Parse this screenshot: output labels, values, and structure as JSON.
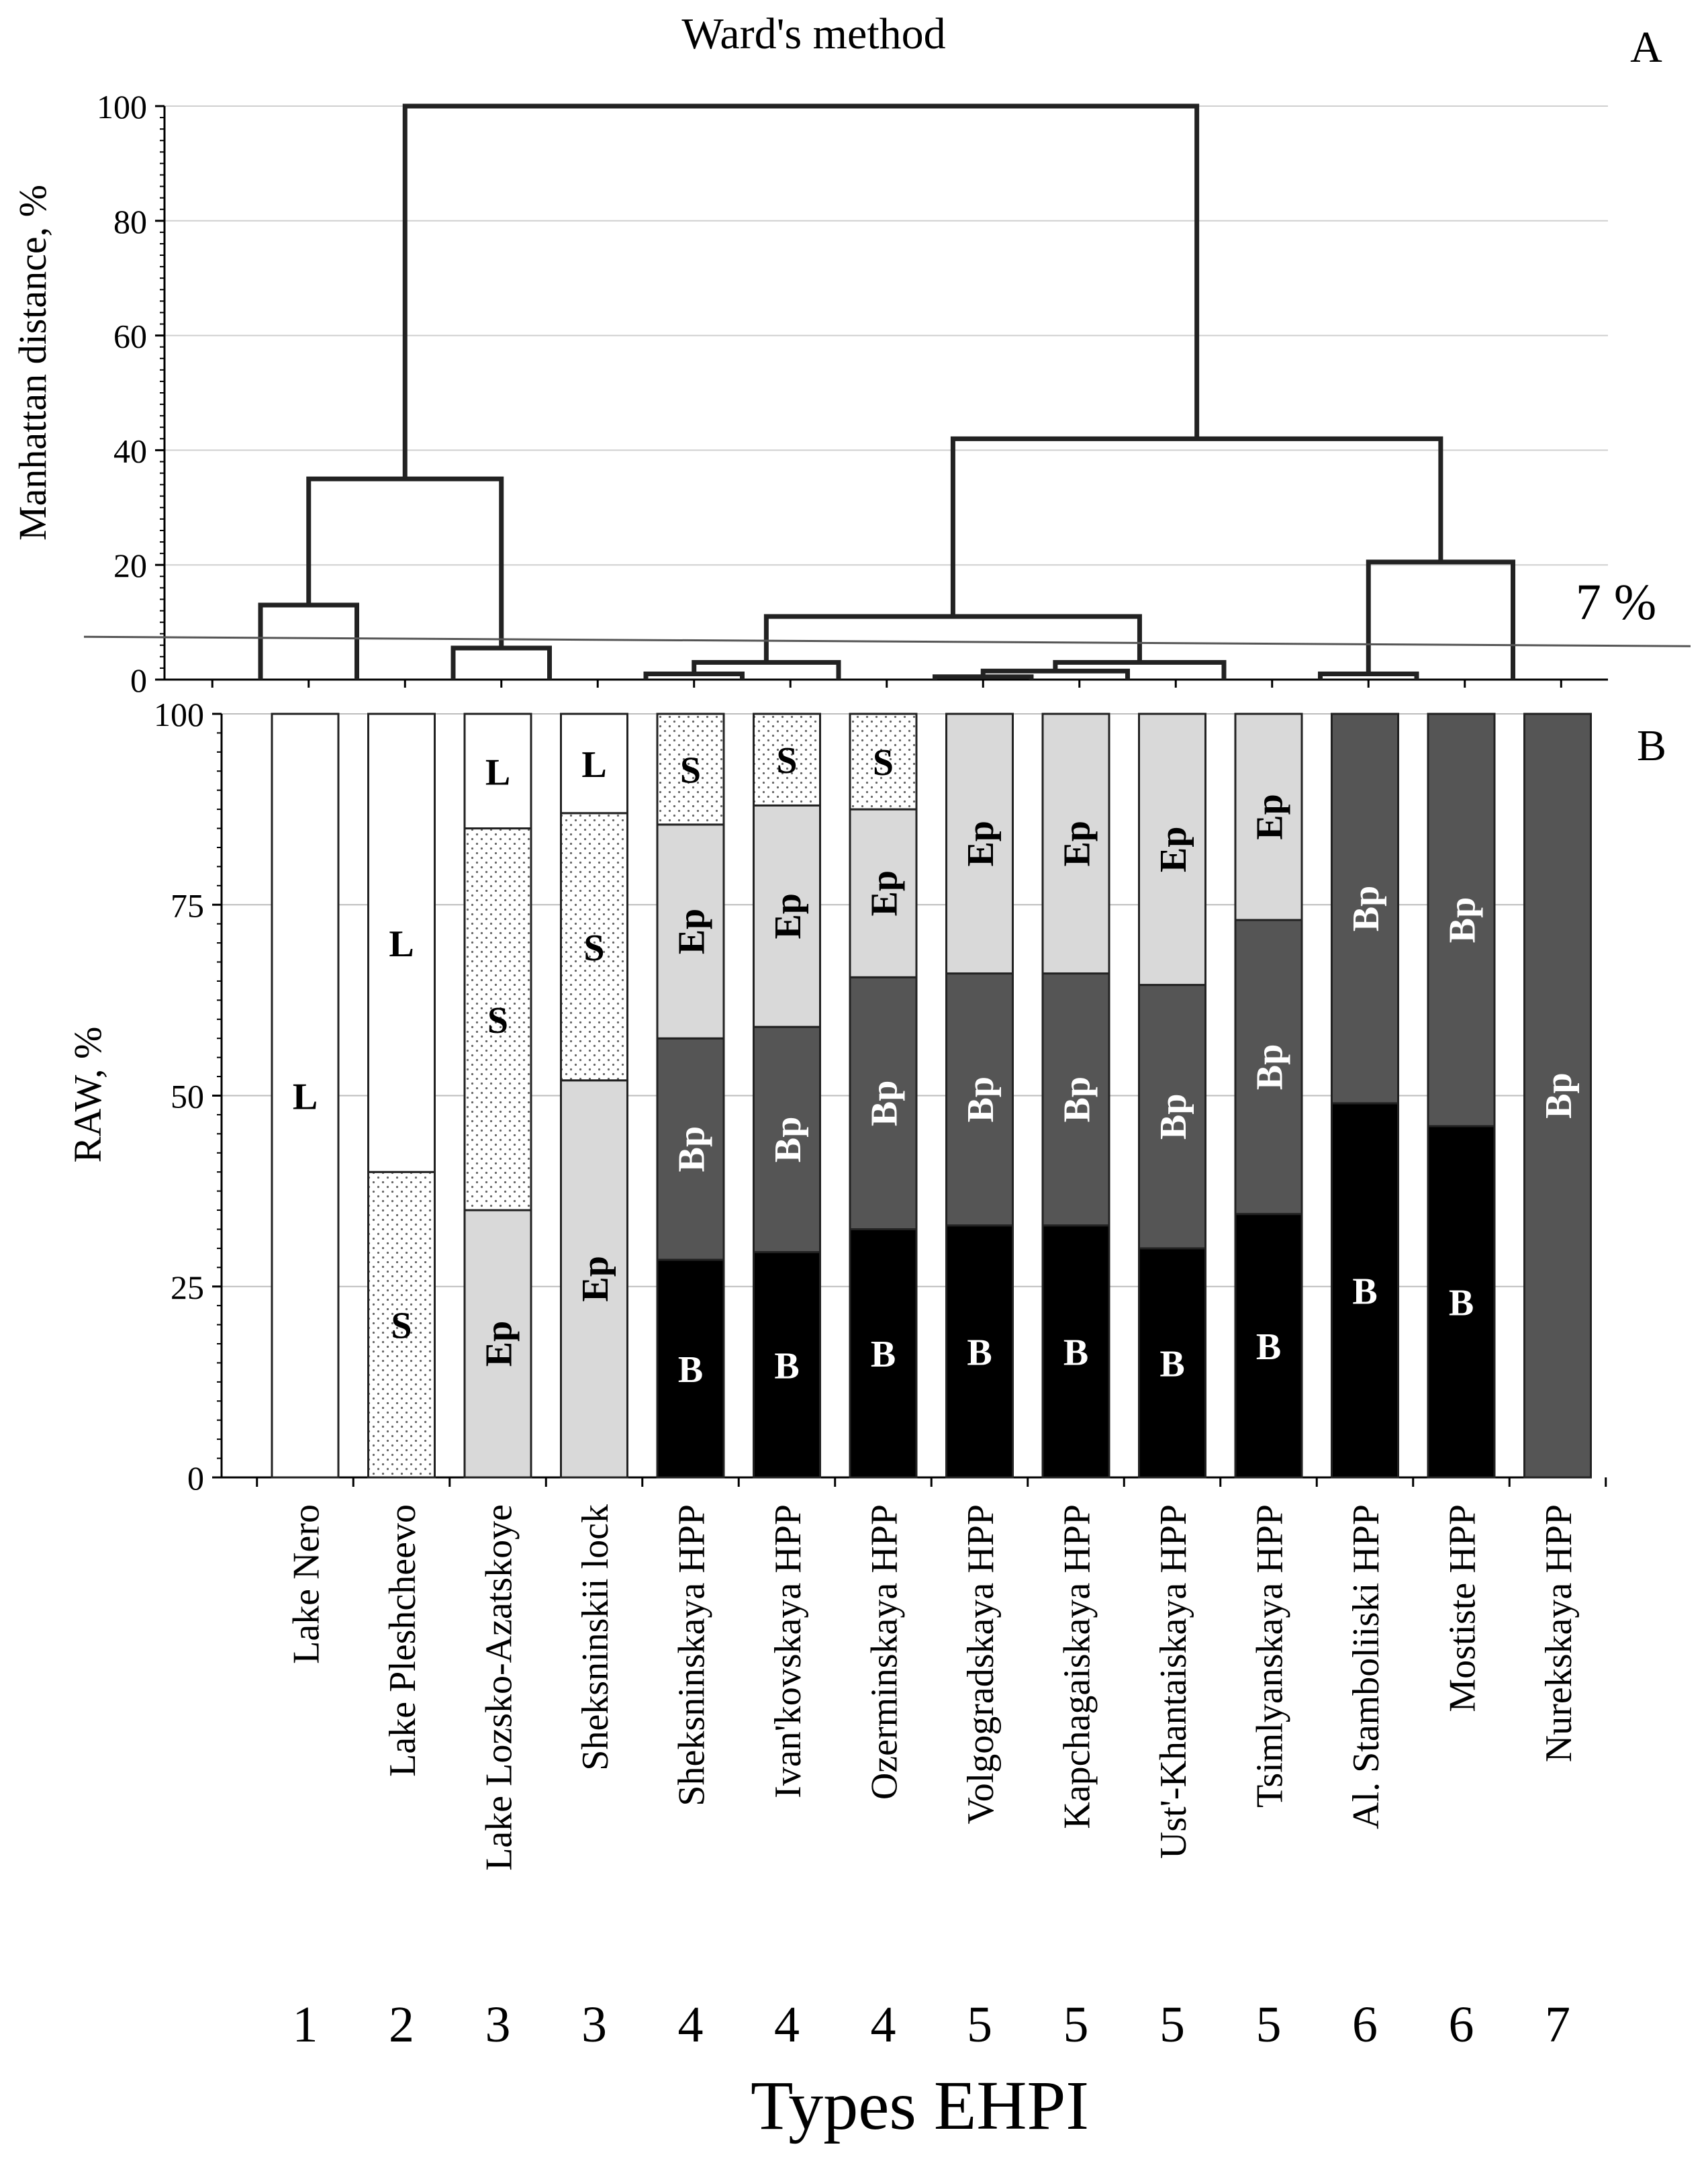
{
  "chart_data": [
    {
      "type": "dendrogram",
      "panel_label": "A",
      "title": "Ward's method",
      "ylabel": "Manhattan distance, %",
      "ylim": [
        0,
        100
      ],
      "yticks": [
        0,
        20,
        40,
        60,
        80,
        100
      ],
      "threshold_label": "7 %",
      "threshold_value": 7,
      "links": [
        {
          "left": 1,
          "right": 2,
          "height": 13
        },
        {
          "left": 3,
          "right": 4,
          "height": 5.5
        },
        {
          "left": 1.5,
          "right": 3.5,
          "height": 35
        },
        {
          "left": 5,
          "right": 6,
          "height": 1
        },
        {
          "left": 5.5,
          "right": 7,
          "height": 3
        },
        {
          "left": 8,
          "right": 9,
          "height": 0.5
        },
        {
          "left": 8.5,
          "right": 10,
          "height": 1.5
        },
        {
          "left": 9.25,
          "right": 11,
          "height": 3
        },
        {
          "left": 6.25,
          "right": 10.125,
          "height": 11
        },
        {
          "left": 12,
          "right": 13,
          "height": 1
        },
        {
          "left": 12.5,
          "right": 14,
          "height": 20.5
        },
        {
          "left": 8.1875,
          "right": 13.25,
          "height": 42
        },
        {
          "left": 2.5,
          "right": 10.71875,
          "height": 100
        }
      ]
    },
    {
      "type": "stacked-bar",
      "panel_label": "B",
      "ylabel": "RAW, %",
      "xlabel": "Types EHPI",
      "ylim": [
        0,
        100
      ],
      "yticks": [
        0,
        25,
        50,
        75,
        100
      ],
      "categories": [
        "Lake Nero",
        "Lake Pleshcheevo",
        "Lake Lozsko-Azatskoye",
        "Sheksninskii  lock",
        "Sheksninskaya  HPP",
        "Ivan'kovskaya  HPP",
        "Ozerminskaya  HPP",
        "Volgogradskaya  HPP",
        "Kapchagaiskaya  HPP",
        "Ust'-Khantaiskaya  HPP",
        "Tsimlyanskaya  HPP",
        "Al. Stamboliiski  HPP",
        "Mostiste  HPP",
        "Nurekskaya  HPP"
      ],
      "type_numbers": [
        "1",
        "2",
        "3",
        "3",
        "4",
        "4",
        "4",
        "5",
        "5",
        "5",
        "5",
        "6",
        "6",
        "7"
      ],
      "series": [
        {
          "name": "B",
          "color": "#000000",
          "label_color": "#ffffff",
          "values": [
            0,
            0,
            0,
            0,
            28.5,
            29.5,
            32.5,
            33,
            33,
            30,
            34.5,
            49,
            46,
            0
          ]
        },
        {
          "name": "Bp",
          "color": "#555555",
          "label_color": "#ffffff",
          "values": [
            0,
            0,
            0,
            0,
            29,
            29.5,
            33,
            33,
            33,
            34.5,
            38.5,
            51,
            54,
            100
          ]
        },
        {
          "name": "Ep",
          "color": "#d9d9d9",
          "label_color": "#000000",
          "values": [
            0,
            0,
            35,
            52,
            28,
            29,
            22,
            34,
            34,
            35.5,
            27,
            0,
            0,
            0
          ]
        },
        {
          "name": "S",
          "color": "dotted",
          "label_color": "#000000",
          "values": [
            0,
            40,
            50,
            35,
            14.5,
            12,
            12.5,
            0,
            0,
            0,
            0,
            0,
            0,
            0
          ]
        },
        {
          "name": "L",
          "color": "#ffffff",
          "label_color": "#000000",
          "values": [
            100,
            60,
            15,
            13,
            0,
            0,
            0,
            0,
            0,
            0,
            0,
            0,
            0,
            0
          ]
        }
      ]
    }
  ]
}
